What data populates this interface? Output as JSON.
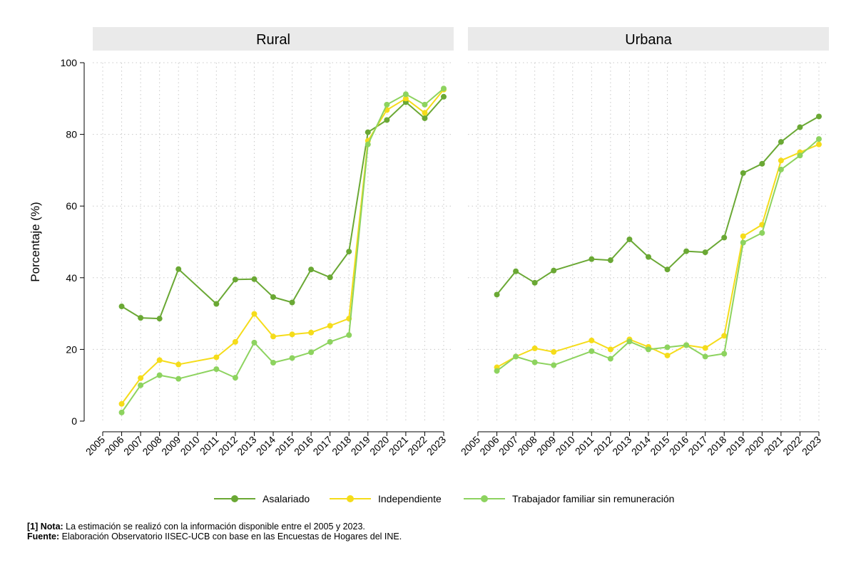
{
  "chart_data": {
    "type": "line",
    "ylabel": "Porcentaje (%)",
    "ylim": [
      0,
      100
    ],
    "yticks": [
      0,
      20,
      40,
      60,
      80,
      100
    ],
    "xlim": [
      2005,
      2023
    ],
    "xticks": [
      2005,
      2006,
      2007,
      2008,
      2009,
      2010,
      2011,
      2012,
      2013,
      2014,
      2015,
      2016,
      2017,
      2018,
      2019,
      2020,
      2021,
      2022,
      2023
    ],
    "grid": true,
    "legend_position": "bottom",
    "colors": {
      "Asalariado": "#6aa834",
      "Independiente": "#f5dc1a",
      "Trabajador familiar sin remuneración": "#8dd35f"
    },
    "panels": [
      {
        "title": "Rural",
        "series": [
          {
            "name": "Asalariado",
            "x": [
              2006,
              2007,
              2008,
              2009,
              2011,
              2012,
              2013,
              2014,
              2015,
              2016,
              2017,
              2018,
              2019,
              2020,
              2021,
              2022,
              2023
            ],
            "values": [
              32.0,
              28.8,
              28.6,
              42.4,
              32.7,
              39.5,
              39.6,
              34.6,
              33.1,
              42.3,
              40.1,
              47.3,
              80.6,
              84.0,
              89.0,
              84.5,
              90.5
            ]
          },
          {
            "name": "Independiente",
            "x": [
              2006,
              2007,
              2008,
              2009,
              2011,
              2012,
              2013,
              2014,
              2015,
              2016,
              2017,
              2018,
              2019,
              2020,
              2021,
              2022,
              2023
            ],
            "values": [
              4.8,
              12.0,
              17.0,
              15.8,
              17.8,
              22.1,
              29.9,
              23.6,
              24.2,
              24.7,
              26.6,
              28.6,
              78.2,
              86.8,
              90.0,
              86.0,
              92.5
            ]
          },
          {
            "name": "Trabajador familiar sin remuneración",
            "x": [
              2006,
              2007,
              2008,
              2009,
              2011,
              2012,
              2013,
              2014,
              2015,
              2016,
              2017,
              2018,
              2019,
              2020,
              2021,
              2022,
              2023
            ],
            "values": [
              2.4,
              10.0,
              12.8,
              11.8,
              14.5,
              12.1,
              21.9,
              16.3,
              17.6,
              19.2,
              22.1,
              24.0,
              77.2,
              88.3,
              91.2,
              88.3,
              92.8
            ]
          }
        ]
      },
      {
        "title": "Urbana",
        "series": [
          {
            "name": "Asalariado",
            "x": [
              2006,
              2007,
              2008,
              2009,
              2011,
              2012,
              2013,
              2014,
              2015,
              2016,
              2017,
              2018,
              2019,
              2020,
              2021,
              2022,
              2023
            ],
            "values": [
              35.3,
              41.8,
              38.6,
              42.0,
              45.2,
              44.9,
              50.7,
              45.8,
              42.3,
              47.4,
              47.1,
              51.2,
              69.2,
              71.8,
              77.9,
              82.0,
              85.0
            ]
          },
          {
            "name": "Independiente",
            "x": [
              2006,
              2007,
              2008,
              2009,
              2011,
              2012,
              2013,
              2014,
              2015,
              2016,
              2017,
              2018,
              2019,
              2020,
              2021,
              2022,
              2023
            ],
            "values": [
              15.0,
              18.0,
              20.3,
              19.3,
              22.5,
              20.0,
              22.8,
              20.7,
              18.3,
              21.2,
              20.4,
              23.8,
              51.6,
              54.8,
              72.7,
              75.0,
              77.2
            ]
          },
          {
            "name": "Trabajador familiar sin remuneración",
            "x": [
              2006,
              2007,
              2008,
              2009,
              2011,
              2012,
              2013,
              2014,
              2015,
              2016,
              2017,
              2018,
              2019,
              2020,
              2021,
              2022,
              2023
            ],
            "values": [
              14.0,
              18.0,
              16.4,
              15.6,
              19.5,
              17.4,
              22.2,
              20.0,
              20.6,
              21.2,
              18.0,
              18.8,
              49.8,
              52.5,
              70.2,
              74.1,
              78.7
            ]
          }
        ]
      }
    ]
  },
  "legend": [
    {
      "label": "Asalariado",
      "color": "#6aa834"
    },
    {
      "label": "Independiente",
      "color": "#f5dc1a"
    },
    {
      "label": "Trabajador familiar sin remuneración",
      "color": "#8dd35f"
    }
  ],
  "notes": {
    "nota_label": "[1] Nota:",
    "nota_text": " La estimación se realizó con la información disponible entre el 2005 y 2023.",
    "fuente_label": "Fuente:",
    "fuente_text": " Elaboración Observatorio IISEC-UCB con base en las Encuestas de Hogares del INE."
  }
}
